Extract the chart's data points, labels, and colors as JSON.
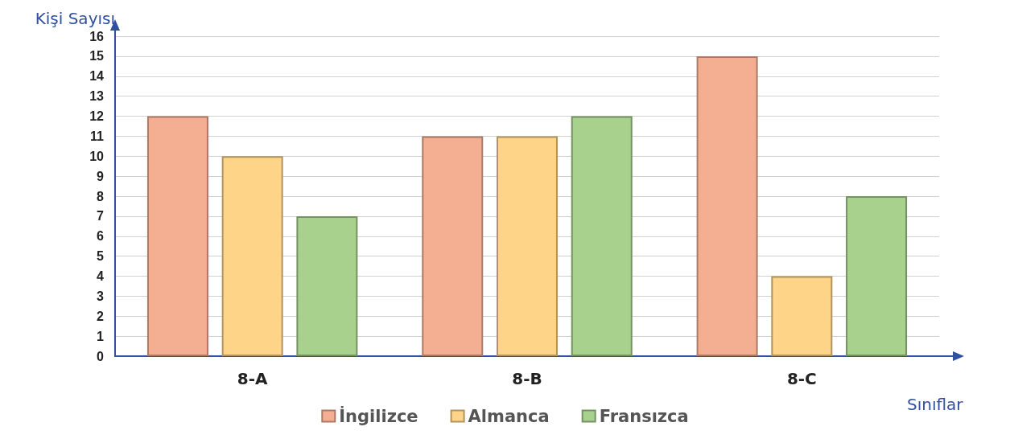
{
  "chart_data": {
    "type": "bar",
    "ylabel": "Kişi Sayısı",
    "xlabel": "Sınıflar",
    "categories": [
      "8-A",
      "8-B",
      "8-C"
    ],
    "series": [
      {
        "name": "İngilizce",
        "color": "#f4ae92",
        "values": [
          12,
          11,
          15
        ]
      },
      {
        "name": "Almanca",
        "color": "#fdd488",
        "values": [
          10,
          11,
          4
        ]
      },
      {
        "name": "Fransızca",
        "color": "#a9d18e",
        "values": [
          7,
          12,
          8
        ]
      }
    ],
    "ylim": [
      0,
      16
    ],
    "yticks": [
      0,
      1,
      2,
      3,
      4,
      5,
      6,
      7,
      8,
      9,
      10,
      11,
      12,
      13,
      14,
      15,
      16
    ],
    "grid": "y",
    "legend": "bottom"
  }
}
